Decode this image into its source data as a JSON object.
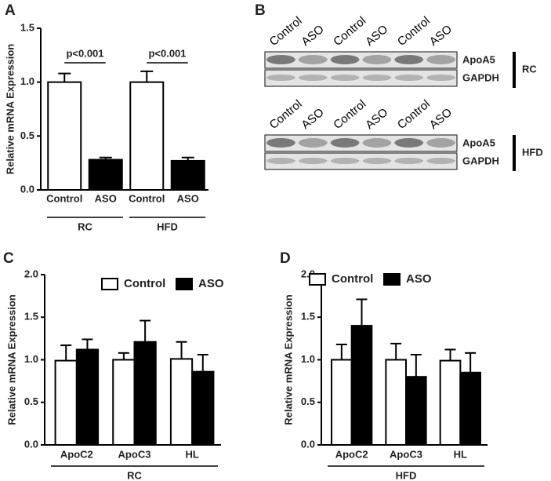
{
  "chart_data": [
    {
      "type": "bar",
      "panel": "A",
      "ylabel": "Relative mRNA Expression",
      "categories": [
        "Control",
        "ASO",
        "Control",
        "ASO"
      ],
      "values": [
        1.0,
        0.28,
        1.0,
        0.27
      ],
      "errors": [
        0.08,
        0.02,
        0.1,
        0.03
      ],
      "colors": [
        "#ffffff",
        "#000000",
        "#ffffff",
        "#000000"
      ],
      "group_labels": [
        "RC",
        "HFD"
      ],
      "annotations": [
        "p<0.001",
        "p<0.001"
      ],
      "ylim": [
        0,
        1.5
      ],
      "yticks": [
        {
          "value": 0,
          "label": "0.0"
        },
        {
          "value": 0.5,
          "label": "0.5"
        },
        {
          "value": 1,
          "label": "1.0"
        },
        {
          "value": 1.5,
          "label": "1.5"
        }
      ]
    },
    {
      "type": "grouped_bar",
      "panel": "C",
      "ylabel": "Relative mRNA Expression",
      "categories": [
        "ApoC2",
        "ApoC3",
        "HL"
      ],
      "series": [
        {
          "name": "Control",
          "color": "#ffffff",
          "values": [
            0.99,
            1.0,
            1.01
          ],
          "errors": [
            0.18,
            0.08,
            0.2
          ]
        },
        {
          "name": "ASO",
          "color": "#000000",
          "values": [
            1.12,
            1.21,
            0.86
          ],
          "errors": [
            0.12,
            0.25,
            0.2
          ]
        }
      ],
      "group_labels": [
        "RC"
      ],
      "ylim": [
        0,
        2
      ],
      "yticks": [
        {
          "value": 0,
          "label": "0.0"
        },
        {
          "value": 0.5,
          "label": "0.5"
        },
        {
          "value": 1,
          "label": "1.0"
        },
        {
          "value": 1.5,
          "label": "1.5"
        },
        {
          "value": 2,
          "label": "2.0"
        }
      ]
    },
    {
      "type": "grouped_bar",
      "panel": "D",
      "ylabel": "Relative mRNA Expression",
      "categories": [
        "ApoC2",
        "ApoC3",
        "HL"
      ],
      "series": [
        {
          "name": "Control",
          "color": "#ffffff",
          "values": [
            1.0,
            1.0,
            0.99
          ],
          "errors": [
            0.18,
            0.19,
            0.13
          ]
        },
        {
          "name": "ASO",
          "color": "#000000",
          "values": [
            1.4,
            0.8,
            0.85
          ],
          "errors": [
            0.31,
            0.26,
            0.23
          ]
        }
      ],
      "group_labels": [
        "HFD"
      ],
      "ylim": [
        0,
        2
      ],
      "yticks": [
        {
          "value": 0,
          "label": "0.0"
        },
        {
          "value": 0.5,
          "label": "0.5"
        },
        {
          "value": 1,
          "label": "1.0"
        },
        {
          "value": 1.5,
          "label": "1.5"
        },
        {
          "value": 2,
          "label": "2.0"
        }
      ]
    }
  ],
  "blot": {
    "panel": "B",
    "blots": [
      {
        "lanes": [
          "Control",
          "ASO",
          "Control",
          "ASO",
          "Control",
          "ASO"
        ],
        "bands": [
          "ApoA5",
          "GAPDH"
        ],
        "group": "RC"
      },
      {
        "lanes": [
          "Control",
          "ASO",
          "Control",
          "ASO",
          "Control",
          "ASO"
        ],
        "bands": [
          "ApoA5",
          "GAPDH"
        ],
        "group": "HFD"
      }
    ]
  }
}
